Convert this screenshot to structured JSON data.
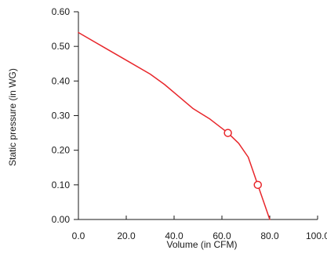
{
  "chart_data": {
    "type": "line",
    "xlabel": "Volume (in CFM)",
    "ylabel": "Static pressure (in WG)",
    "xlim": [
      0,
      100
    ],
    "ylim": [
      0,
      0.6
    ],
    "x_ticks": [
      "0.0",
      "20.0",
      "40.0",
      "60.0",
      "80.0",
      "100.0"
    ],
    "y_ticks": [
      "0.00",
      "0.10",
      "0.20",
      "0.30",
      "0.40",
      "0.50",
      "0.60"
    ],
    "grid": false,
    "line_color": "#e8262b",
    "series": [
      {
        "x": [
          0,
          10,
          20,
          30,
          36,
          42,
          48,
          55,
          62.5,
          67,
          71,
          73,
          75,
          77.5,
          80
        ],
        "y": [
          0.54,
          0.5,
          0.46,
          0.42,
          0.39,
          0.355,
          0.32,
          0.29,
          0.25,
          0.22,
          0.18,
          0.14,
          0.1,
          0.05,
          0.0
        ]
      }
    ],
    "markers": [
      {
        "x": 62.5,
        "y": 0.25
      },
      {
        "x": 75,
        "y": 0.1
      }
    ]
  }
}
